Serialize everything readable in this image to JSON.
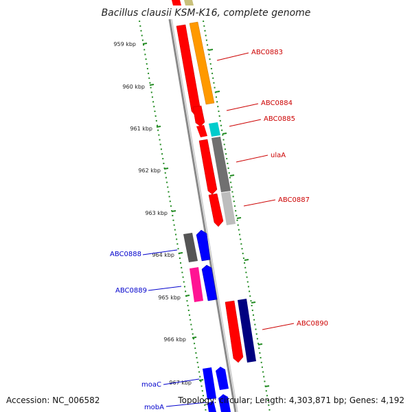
{
  "title": "Bacillus clausii KSM-K16, complete genome",
  "footer": {
    "accession": "Accession: NC_006582",
    "topology": "Topology: circular; Length: 4,303,871 bp; Genes: 4,192"
  },
  "ticks": [
    "959 kbp",
    "960 kbp",
    "961 kbp",
    "962 kbp",
    "963 kbp",
    "964 kbp",
    "965 kbp",
    "966 kbp",
    "967 kbp"
  ],
  "labels_right": [
    "ABC0883",
    "ABC0884",
    "ABC0885",
    "ulaA",
    "ABC0887",
    "ABC0890"
  ],
  "labels_left": [
    "ABC0888",
    "ABC0889",
    "moaC",
    "mobA"
  ],
  "colors": {
    "red": "#ff0000",
    "orange": "#ff9900",
    "cyan": "#00cccc",
    "gray": "#707070",
    "light_gray": "#bdbdbd",
    "dark_gray": "#555555",
    "blue": "#0000ff",
    "pink": "#ff1493",
    "navy": "#000080",
    "olive": "#c8c07a",
    "tick_green": "#228b22",
    "backbone": "#8a8a8a"
  }
}
